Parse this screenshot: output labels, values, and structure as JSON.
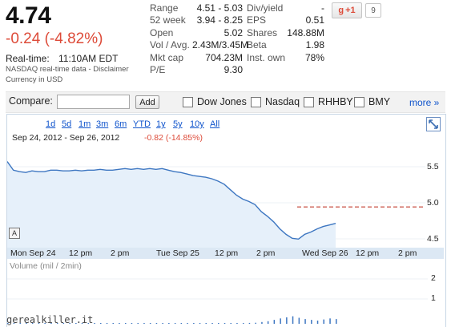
{
  "quote": {
    "price": "4.74",
    "change": "-0.24 (-4.82%)",
    "realtime_label": "Real-time:",
    "realtime_time": "11:10AM EDT",
    "nasdaq_note": "NASDAQ real-time data - Disclaimer",
    "currency_note": "Currency in USD"
  },
  "stats_left": [
    {
      "label": "Range",
      "value": "4.51 - 5.03"
    },
    {
      "label": "52 week",
      "value": "3.94 - 8.25"
    },
    {
      "label": "Open",
      "value": "5.02"
    },
    {
      "label": "Vol / Avg.",
      "value": "2.43M/3.45M"
    },
    {
      "label": "Mkt cap",
      "value": "704.23M"
    },
    {
      "label": "P/E",
      "value": "9.30"
    }
  ],
  "stats_right": [
    {
      "label": "Div/yield",
      "value": "-"
    },
    {
      "label": "EPS",
      "value": "0.51"
    },
    {
      "label": "Shares",
      "value": "148.88M"
    },
    {
      "label": "Beta",
      "value": "1.98"
    },
    {
      "label": "Inst. own",
      "value": "78%"
    }
  ],
  "social": {
    "gplus_label": "+1",
    "gplus_g": "g",
    "count": "9"
  },
  "compare": {
    "label": "Compare:",
    "input_value": "",
    "add_label": "Add",
    "tickers": [
      "Dow Jones",
      "Nasdaq",
      "RHHBY",
      "BMY"
    ],
    "more_label": "more »"
  },
  "chart": {
    "zoom_links": [
      "1d",
      "5d",
      "1m",
      "3m",
      "6m",
      "YTD",
      "1y",
      "5y",
      "10y",
      "All"
    ],
    "date_range": "Sep 24, 2012  -  Sep 26, 2012",
    "range_change": "-0.82 (-14.85%)",
    "marker_label": "A",
    "volume_label": "Volume (mil / 2min)",
    "x_ticks": [
      "Mon Sep 24",
      "12 pm",
      "2 pm",
      "Tue Sep 25",
      "12 pm",
      "2 pm",
      "Wed Sep 26",
      "12 pm",
      "2 pm"
    ],
    "y_ticks": [
      "5.5",
      "5.0",
      "4.5"
    ],
    "volume_ticks": [
      "2",
      "1"
    ],
    "line_color": "#3d76c1",
    "fill_color": "#e6f0fa",
    "prev_close_color": "#c0392b"
  },
  "chart_data": {
    "type": "line",
    "title": "",
    "xlabel": "",
    "ylabel": "",
    "ylim": [
      4.42,
      5.75
    ],
    "x_ticks": [
      "Mon Sep 24",
      "12 pm",
      "2 pm",
      "Tue Sep 25",
      "12 pm",
      "2 pm",
      "Wed Sep 26",
      "12 pm",
      "2 pm"
    ],
    "reference_line": 4.95,
    "series": [
      {
        "values": [
          5.53,
          5.42,
          5.4,
          5.39,
          5.41,
          5.4,
          5.4,
          5.42,
          5.42,
          5.41,
          5.41,
          5.42,
          5.41,
          5.42,
          5.42,
          5.43,
          5.42,
          5.42,
          5.43,
          5.44,
          5.43,
          5.44,
          5.43,
          5.44,
          5.43,
          5.44,
          5.42,
          5.4,
          5.39,
          5.37,
          5.35,
          5.34,
          5.33,
          5.31,
          5.28,
          5.24,
          5.17,
          5.1,
          5.05,
          5.02,
          4.98,
          4.89,
          4.83,
          4.76,
          4.67,
          4.6,
          4.55,
          4.54,
          4.6,
          4.63,
          4.67,
          4.7,
          4.72,
          4.74
        ]
      }
    ],
    "volume": [
      0.02,
      0.01,
      0.01,
      0.01,
      0.01,
      0.01,
      0.01,
      0.01,
      0.01,
      0.01,
      0.01,
      0.01,
      0.01,
      0.01,
      0.01,
      0.01,
      0.01,
      0.01,
      0.01,
      0.01,
      0.01,
      0.01,
      0.01,
      0.01,
      0.01,
      0.01,
      0.01,
      0.01,
      0.01,
      0.01,
      0.01,
      0.01,
      0.01,
      0.01,
      0.02,
      0.02,
      0.02,
      0.03,
      0.03,
      0.04,
      0.05,
      0.08,
      0.12,
      0.18,
      0.25,
      0.3,
      0.35,
      0.28,
      0.22,
      0.18,
      0.15,
      0.2,
      0.25,
      0.22
    ],
    "volume_ylim": [
      0,
      2.3
    ]
  },
  "watermark": "gerealkiller.it"
}
